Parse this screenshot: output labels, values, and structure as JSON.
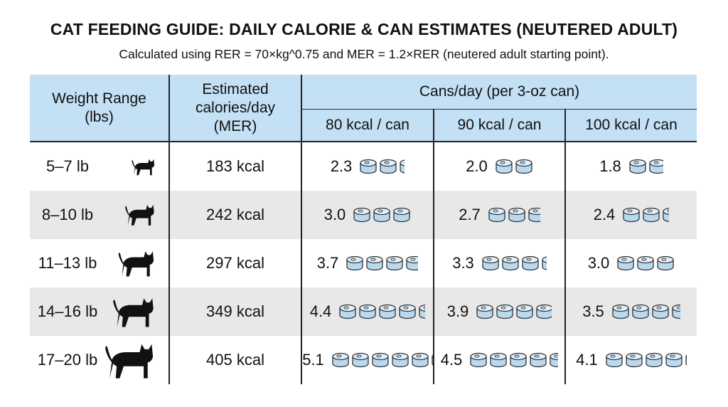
{
  "title": "CAT FEEDING GUIDE: DAILY CALORIE & CAN ESTIMATES (NEUTERED ADULT)",
  "subtitle": "Calculated using RER = 70×kg^0.75 and MER = 1.2×RER (neutered adult starting point).",
  "headers": {
    "weight": "Weight Range (lbs)",
    "calories": "Estimated calories/day (MER)",
    "cans_group": "Cans/day (per 3-oz can)",
    "cols": [
      "80 kcal / can",
      "90 kcal / can",
      "100 kcal / can"
    ]
  },
  "colors": {
    "header_bg": "#c3e0f4",
    "alt_row": "#e8e8e8",
    "can_fill": "#b9d9f0"
  },
  "icons": {
    "cat": "cat-silhouette-icon",
    "can": "food-can-icon"
  },
  "rows": [
    {
      "weight": "5–7 lb",
      "calories": "183 kcal",
      "cans": [
        "2.3",
        "2.0",
        "1.8"
      ]
    },
    {
      "weight": "8–10 lb",
      "calories": "242 kcal",
      "cans": [
        "3.0",
        "2.7",
        "2.4"
      ]
    },
    {
      "weight": "11–13 lb",
      "calories": "297 kcal",
      "cans": [
        "3.7",
        "3.3",
        "3.0"
      ]
    },
    {
      "weight": "14–16 lb",
      "calories": "349 kcal",
      "cans": [
        "4.4",
        "3.9",
        "3.5"
      ]
    },
    {
      "weight": "17–20 lb",
      "calories": "405 kcal",
      "cans": [
        "5.1",
        "4.5",
        "4.1"
      ]
    }
  ]
}
